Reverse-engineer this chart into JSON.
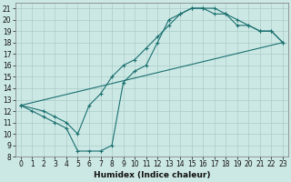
{
  "xlabel": "Humidex (Indice chaleur)",
  "bg_color": "#cce8e4",
  "grid_color": "#aaccca",
  "line_color": "#1a7070",
  "xlim": [
    -0.5,
    23.5
  ],
  "ylim": [
    8,
    21.5
  ],
  "xticks": [
    0,
    1,
    2,
    3,
    4,
    5,
    6,
    7,
    8,
    9,
    10,
    11,
    12,
    13,
    14,
    15,
    16,
    17,
    18,
    19,
    20,
    21,
    22,
    23
  ],
  "yticks": [
    8,
    9,
    10,
    11,
    12,
    13,
    14,
    15,
    16,
    17,
    18,
    19,
    20,
    21
  ],
  "curve1_x": [
    0,
    1,
    2,
    3,
    4,
    5,
    6,
    7,
    8,
    9,
    10,
    11,
    12,
    13,
    14,
    15,
    16,
    17,
    18,
    19,
    20,
    21,
    22,
    23
  ],
  "curve1_y": [
    12.5,
    12.0,
    11.5,
    11.0,
    10.5,
    8.5,
    8.5,
    8.5,
    9.0,
    14.5,
    15.5,
    16.0,
    18.0,
    20.0,
    20.5,
    21.0,
    21.0,
    21.0,
    20.5,
    19.5,
    19.5,
    19.0,
    19.0,
    18.0
  ],
  "curve2_x": [
    0,
    2,
    3,
    4,
    5,
    6,
    7,
    8,
    9,
    10,
    11,
    12,
    13,
    14,
    15,
    16,
    17,
    18,
    19,
    20,
    21,
    22,
    23
  ],
  "curve2_y": [
    12.5,
    12.0,
    11.5,
    11.0,
    10.0,
    12.5,
    13.5,
    15.0,
    16.0,
    16.5,
    17.5,
    18.5,
    19.5,
    20.5,
    21.0,
    21.0,
    20.5,
    20.5,
    20.0,
    19.5,
    19.0,
    19.0,
    18.0
  ],
  "curve3_x": [
    0,
    23
  ],
  "curve3_y": [
    12.5,
    18.0
  ],
  "tick_fontsize": 5.5,
  "xlabel_fontsize": 6.5
}
